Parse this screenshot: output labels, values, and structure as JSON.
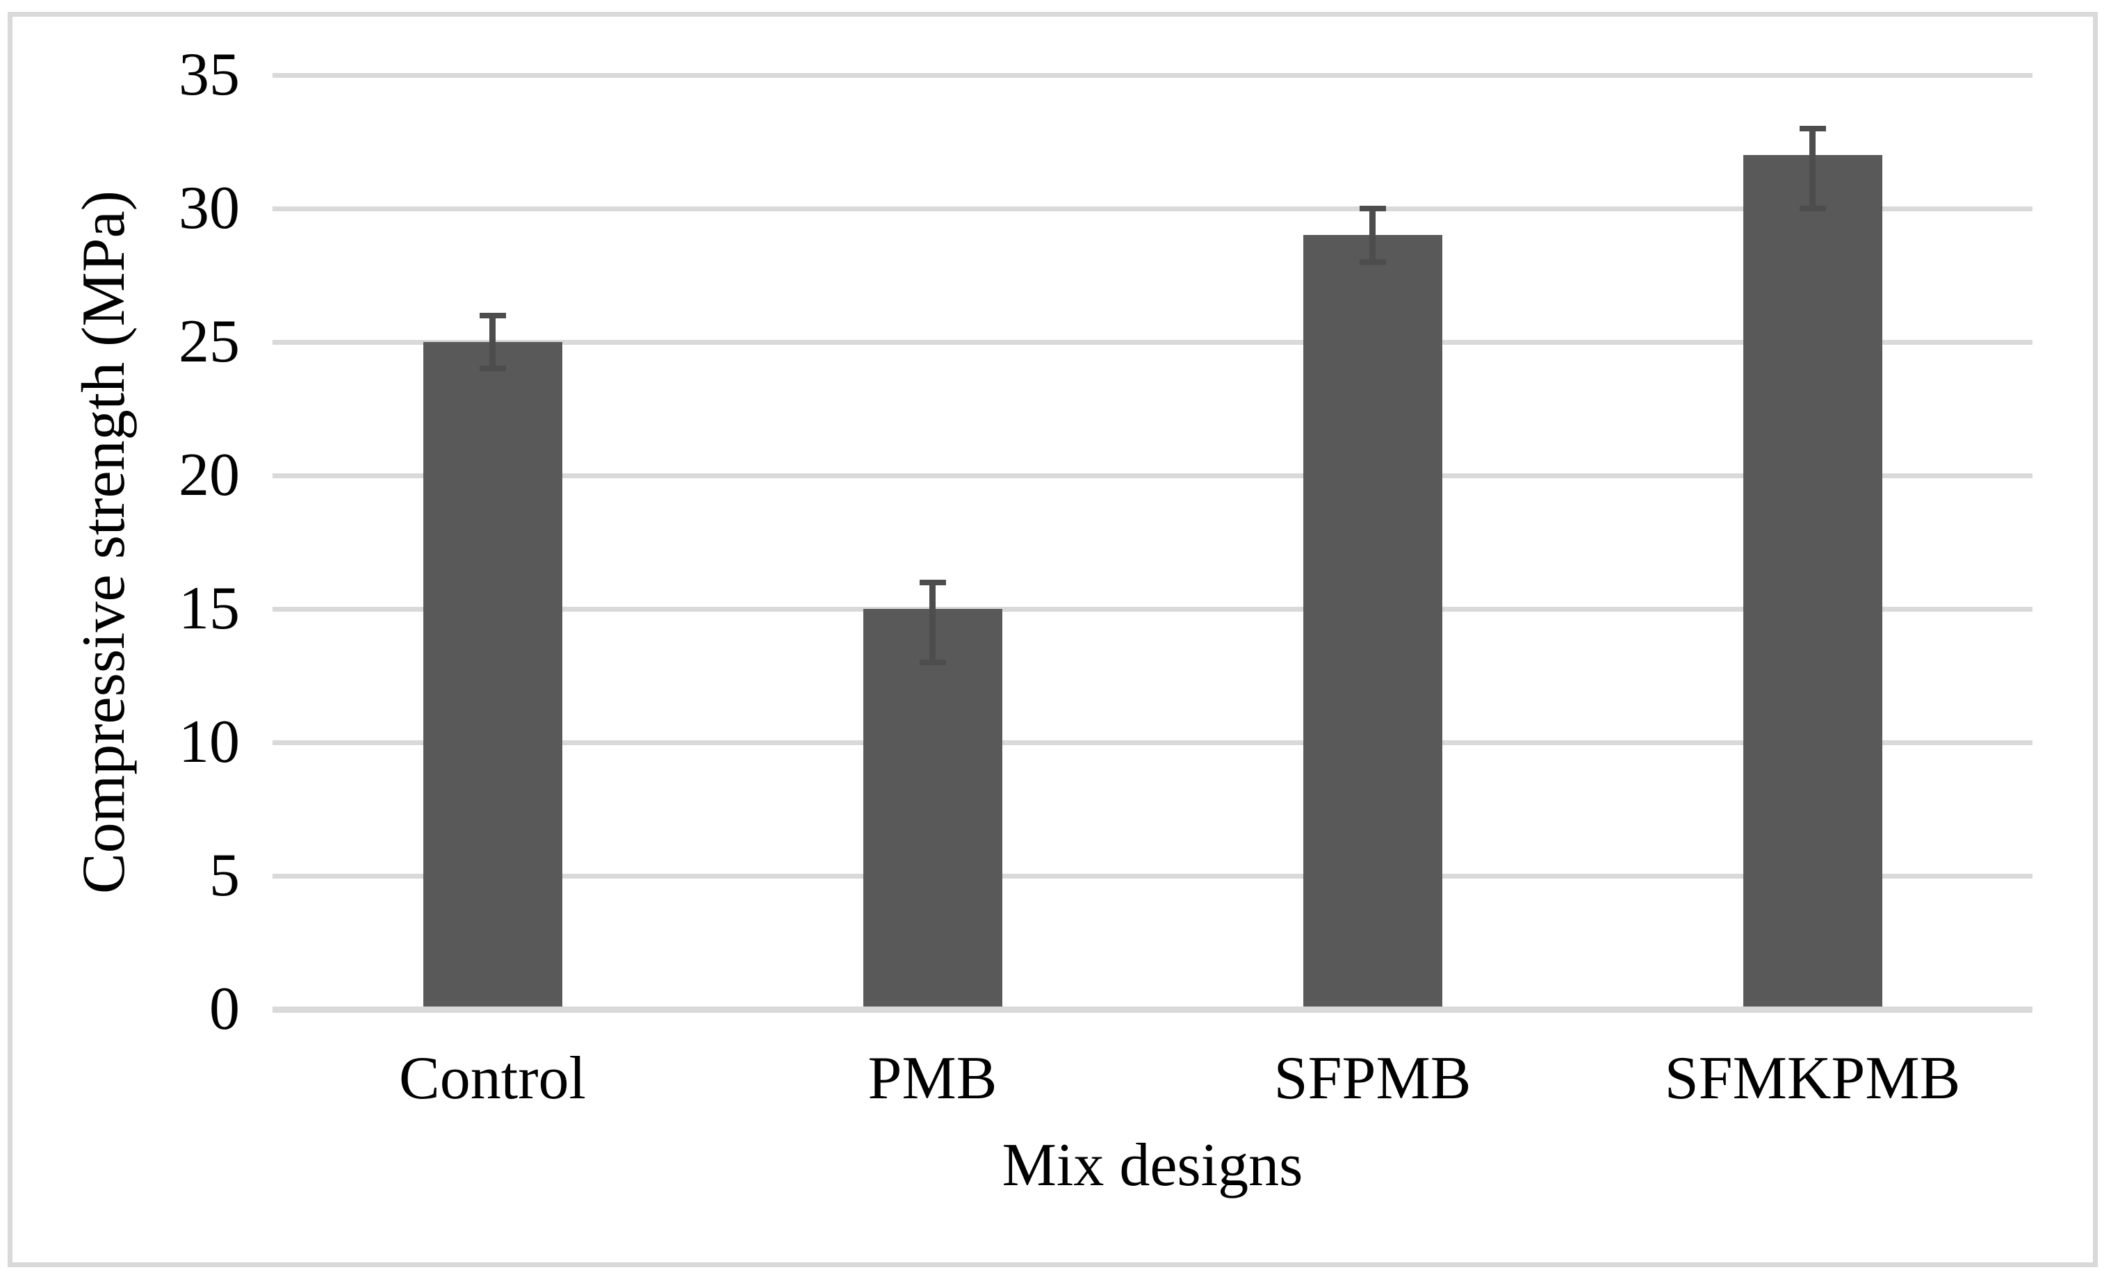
{
  "chart_data": {
    "type": "bar",
    "title": "",
    "categories": [
      "Control",
      "PMB",
      "SFPMB",
      "SFMKPMB"
    ],
    "values": [
      25,
      15,
      29,
      32
    ],
    "error_low": [
      24,
      13,
      28,
      30
    ],
    "error_high": [
      26,
      16,
      30,
      33
    ],
    "xlabel": "Mix designs",
    "ylabel": "Compressive strength (MPa)",
    "ylim": [
      0,
      35
    ],
    "ytick_step": 5,
    "yticks": [
      0,
      5,
      10,
      15,
      20,
      25,
      30,
      35
    ],
    "grid": "horizontal",
    "legend": "none"
  },
  "colors": {
    "bar": "#595959",
    "error_bar": "#4d4d4d",
    "gridline": "#d9d9d9",
    "axis_line": "#d9d9d9",
    "border": "#d9d9d9",
    "text": "#000000",
    "background": "#ffffff"
  }
}
